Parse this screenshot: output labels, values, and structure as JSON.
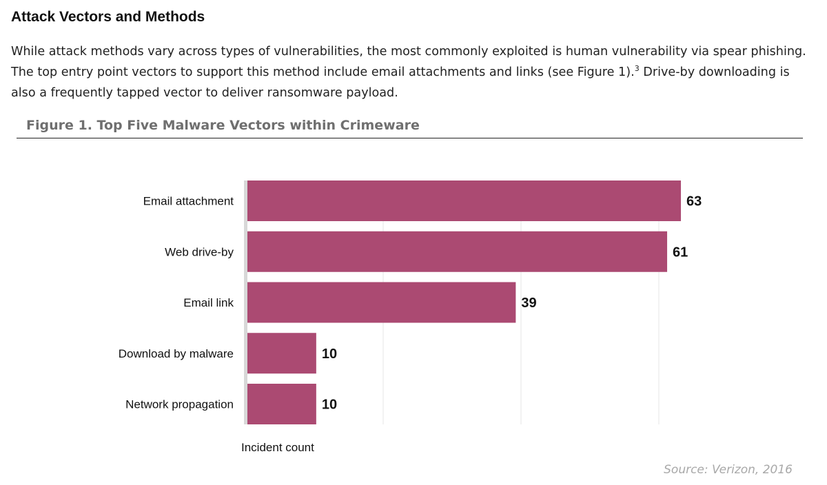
{
  "document": {
    "heading": "Attack Vectors and Methods",
    "intro_before_sup": "While attack methods vary across types of vulnerabilities, the most commonly exploited is human vulnerability via spear phishing. The top entry point vectors to support this method include email attachments and links (see Figure 1).",
    "intro_sup": "3",
    "intro_after_sup": " Drive-by downloading is also a frequently tapped vector to deliver ransomware payload.",
    "figure_caption": "Figure 1.  Top Five Malware Vectors within Crimeware",
    "source": "Source: Verizon, 2016"
  },
  "colors": {
    "bar": "#ab4a72",
    "gridline": "#e4e4e4",
    "baseline": "#d8d8d8",
    "caption": "#6f6f6f",
    "source": "#a8a8a8"
  },
  "chart_data": {
    "type": "bar",
    "orientation": "horizontal",
    "title": "Figure 1.  Top Five Malware Vectors within Crimeware",
    "xlabel": "Incident count",
    "ylabel": "",
    "categories": [
      "Email attachment",
      "Web drive-by",
      "Email link",
      "Download by malware",
      "Network propagation"
    ],
    "values": [
      63,
      61,
      39,
      10,
      10
    ],
    "data_labels": [
      "63",
      "61",
      "39",
      "10",
      "10"
    ],
    "xlim": [
      0,
      63
    ],
    "grid": true,
    "legend": "none"
  }
}
